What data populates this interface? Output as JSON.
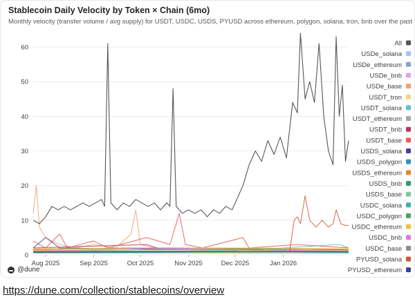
{
  "card": {
    "title": "Stablecoin Daily Velocity by Token × Chain (6mo)",
    "subtitle": "Monthly velocity (transfer volume / avg supply) for USDT, USDC, USDS, PYUSD across ethereum, polygon, solana, tron, bnb over the past year. Uses sta"
  },
  "footer": {
    "brand": "@dune"
  },
  "link": {
    "url": "https://dune.com/collection/stablecoins/overview"
  },
  "chart_data": {
    "type": "line",
    "x_start": "2025-07-24",
    "x_end": "2026-02-12",
    "x_ticks": [
      {
        "date": "2025-08-01",
        "label": "Aug 2025"
      },
      {
        "date": "2025-09-01",
        "label": "Sep 2025"
      },
      {
        "date": "2025-10-01",
        "label": "Oct 2025"
      },
      {
        "date": "2025-11-01",
        "label": "Nov 2025"
      },
      {
        "date": "2025-12-01",
        "label": "Dec 2025"
      },
      {
        "date": "2026-01-01",
        "label": "Jan 2026"
      }
    ],
    "ylim": [
      0,
      65
    ],
    "y_ticks": [
      0,
      10,
      20,
      30,
      40,
      50,
      60
    ],
    "grid": "horizontal",
    "legend_position": "right",
    "series": [
      {
        "name": "All",
        "color": "#555555",
        "values": [
          [
            "2025-07-24",
            10
          ],
          [
            "2025-07-28",
            9
          ],
          [
            "2025-08-01",
            11
          ],
          [
            "2025-08-05",
            14
          ],
          [
            "2025-08-09",
            13
          ],
          [
            "2025-08-13",
            14
          ],
          [
            "2025-08-17",
            13
          ],
          [
            "2025-08-21",
            14
          ],
          [
            "2025-08-25",
            15
          ],
          [
            "2025-08-29",
            14
          ],
          [
            "2025-09-02",
            15
          ],
          [
            "2025-09-06",
            16
          ],
          [
            "2025-09-08",
            14
          ],
          [
            "2025-09-10",
            61
          ],
          [
            "2025-09-12",
            15
          ],
          [
            "2025-09-16",
            13
          ],
          [
            "2025-09-20",
            15
          ],
          [
            "2025-09-24",
            14
          ],
          [
            "2025-09-28",
            16
          ],
          [
            "2025-10-02",
            15
          ],
          [
            "2025-10-06",
            14
          ],
          [
            "2025-10-10",
            15
          ],
          [
            "2025-10-14",
            13
          ],
          [
            "2025-10-18",
            15
          ],
          [
            "2025-10-20",
            14
          ],
          [
            "2025-10-22",
            48
          ],
          [
            "2025-10-24",
            14
          ],
          [
            "2025-10-28",
            12
          ],
          [
            "2025-11-01",
            13
          ],
          [
            "2025-11-05",
            12
          ],
          [
            "2025-11-09",
            13
          ],
          [
            "2025-11-13",
            11
          ],
          [
            "2025-11-17",
            13
          ],
          [
            "2025-11-21",
            12
          ],
          [
            "2025-11-25",
            14
          ],
          [
            "2025-11-29",
            13
          ],
          [
            "2025-12-02",
            16
          ],
          [
            "2025-12-06",
            20
          ],
          [
            "2025-12-10",
            26
          ],
          [
            "2025-12-14",
            30
          ],
          [
            "2025-12-18",
            27
          ],
          [
            "2025-12-22",
            33
          ],
          [
            "2025-12-26",
            29
          ],
          [
            "2025-12-30",
            34
          ],
          [
            "2026-01-03",
            28
          ],
          [
            "2026-01-07",
            44
          ],
          [
            "2026-01-10",
            41
          ],
          [
            "2026-01-12",
            64
          ],
          [
            "2026-01-15",
            45
          ],
          [
            "2026-01-18",
            50
          ],
          [
            "2026-01-21",
            44
          ],
          [
            "2026-01-24",
            61
          ],
          [
            "2026-01-27",
            40
          ],
          [
            "2026-01-30",
            30
          ],
          [
            "2026-02-02",
            26
          ],
          [
            "2026-02-04",
            63
          ],
          [
            "2026-02-06",
            40
          ],
          [
            "2026-02-08",
            49
          ],
          [
            "2026-02-10",
            27
          ],
          [
            "2026-02-12",
            33
          ]
        ]
      },
      {
        "name": "USDe_solana",
        "color": "#9ec5f8",
        "values": [
          [
            "2025-07-24",
            1
          ],
          [
            "2025-10-01",
            1
          ],
          [
            "2026-02-12",
            1
          ]
        ]
      },
      {
        "name": "USDe_ethereum",
        "color": "#8ea0c8",
        "values": [
          [
            "2025-07-24",
            1.5
          ],
          [
            "2025-10-01",
            2
          ],
          [
            "2026-02-12",
            1.5
          ]
        ]
      },
      {
        "name": "USDe_bnb",
        "color": "#e3a0ec",
        "values": [
          [
            "2025-07-24",
            0.8
          ],
          [
            "2025-11-01",
            1
          ],
          [
            "2026-02-12",
            0.8
          ]
        ]
      },
      {
        "name": "USDe_base",
        "color": "#f0a070",
        "values": [
          [
            "2025-07-24",
            12
          ],
          [
            "2025-07-26",
            20
          ],
          [
            "2025-07-28",
            8
          ],
          [
            "2025-08-01",
            5
          ],
          [
            "2025-08-05",
            4
          ],
          [
            "2025-08-10",
            3
          ],
          [
            "2025-08-20",
            2
          ],
          [
            "2025-09-01",
            3
          ],
          [
            "2025-09-15",
            2
          ],
          [
            "2025-09-25",
            6
          ],
          [
            "2025-09-28",
            13
          ],
          [
            "2025-10-01",
            3
          ],
          [
            "2025-10-10",
            2
          ],
          [
            "2025-11-01",
            2
          ],
          [
            "2025-12-01",
            2
          ],
          [
            "2026-01-01",
            1
          ],
          [
            "2026-02-12",
            1
          ]
        ]
      },
      {
        "name": "USDT_tron",
        "color": "#f5d77a",
        "values": [
          [
            "2025-07-24",
            0.5
          ],
          [
            "2025-12-01",
            0.7
          ],
          [
            "2026-02-12",
            0.5
          ]
        ]
      },
      {
        "name": "USDT_solana",
        "color": "#5dc2c8",
        "values": [
          [
            "2025-07-24",
            1
          ],
          [
            "2025-12-01",
            1.2
          ],
          [
            "2026-02-06",
            3
          ],
          [
            "2026-02-12",
            2
          ]
        ]
      },
      {
        "name": "USDT_ethereum",
        "color": "#a8a8a8",
        "values": [
          [
            "2025-07-24",
            1
          ],
          [
            "2025-12-01",
            1
          ],
          [
            "2026-02-12",
            1
          ]
        ]
      },
      {
        "name": "USDT_bnb",
        "color": "#b7375b",
        "values": [
          [
            "2025-07-24",
            2
          ],
          [
            "2025-10-05",
            3
          ],
          [
            "2025-10-12",
            2
          ],
          [
            "2026-02-12",
            1.5
          ]
        ]
      },
      {
        "name": "USDT_base",
        "color": "#e85a55",
        "values": [
          [
            "2025-07-24",
            4
          ],
          [
            "2025-08-01",
            2
          ],
          [
            "2025-08-10",
            6
          ],
          [
            "2025-08-15",
            2
          ],
          [
            "2025-09-01",
            4
          ],
          [
            "2025-09-10",
            2
          ],
          [
            "2025-10-05",
            5
          ],
          [
            "2025-10-20",
            3
          ],
          [
            "2025-10-26",
            12
          ],
          [
            "2025-10-30",
            3
          ],
          [
            "2025-11-10",
            2
          ],
          [
            "2025-12-06",
            5
          ],
          [
            "2025-12-10",
            2
          ],
          [
            "2026-01-10",
            3
          ],
          [
            "2026-02-12",
            2
          ]
        ]
      },
      {
        "name": "USDS_solana",
        "color": "#4a3d9e",
        "values": [
          [
            "2025-07-24",
            2
          ],
          [
            "2025-08-01",
            5
          ],
          [
            "2025-08-10",
            2
          ],
          [
            "2026-02-12",
            1
          ]
        ]
      },
      {
        "name": "USDS_polygon",
        "color": "#3590c5",
        "values": [
          [
            "2025-07-24",
            0.8
          ],
          [
            "2025-12-01",
            1
          ],
          [
            "2026-02-12",
            0.8
          ]
        ]
      },
      {
        "name": "USDS_ethereum",
        "color": "#e58a2e",
        "values": [
          [
            "2025-07-24",
            1.2
          ],
          [
            "2025-11-01",
            1.5
          ],
          [
            "2026-02-12",
            1.2
          ]
        ]
      },
      {
        "name": "USDS_bnb",
        "color": "#2f9c66",
        "values": [
          [
            "2025-07-24",
            0.6
          ],
          [
            "2026-02-12",
            0.6
          ]
        ]
      },
      {
        "name": "USDS_base",
        "color": "#7ac99a",
        "values": [
          [
            "2025-07-24",
            1
          ],
          [
            "2025-10-15",
            1.5
          ],
          [
            "2026-02-12",
            1
          ]
        ]
      },
      {
        "name": "USDC_solana",
        "color": "#3bb5a5",
        "values": [
          [
            "2025-07-24",
            0.7
          ],
          [
            "2026-01-20",
            1
          ],
          [
            "2026-02-12",
            0.7
          ]
        ]
      },
      {
        "name": "USDC_polygon",
        "color": "#4aa55a",
        "values": [
          [
            "2025-07-24",
            1.5
          ],
          [
            "2025-09-20",
            2
          ],
          [
            "2026-02-12",
            1.5
          ]
        ]
      },
      {
        "name": "USDC_ethereum",
        "color": "#f2c03a",
        "values": [
          [
            "2025-07-24",
            1.8
          ],
          [
            "2025-12-15",
            2
          ],
          [
            "2026-02-12",
            1.8
          ]
        ]
      },
      {
        "name": "USDC_bnb",
        "color": "#e07ad6",
        "values": [
          [
            "2025-07-24",
            1
          ],
          [
            "2025-10-10",
            2
          ],
          [
            "2026-02-12",
            1
          ]
        ]
      },
      {
        "name": "USDC_base",
        "color": "#8c8c8c",
        "values": [
          [
            "2025-07-24",
            0.9
          ],
          [
            "2026-02-12",
            0.9
          ]
        ]
      },
      {
        "name": "PYUSD_solana",
        "color": "#d2533a",
        "values": [
          [
            "2025-07-24",
            1
          ],
          [
            "2025-12-01",
            1
          ],
          [
            "2026-01-05",
            1
          ],
          [
            "2026-01-08",
            10
          ],
          [
            "2026-01-10",
            11
          ],
          [
            "2026-01-12",
            9
          ],
          [
            "2026-01-15",
            17
          ],
          [
            "2026-01-18",
            10
          ],
          [
            "2026-01-20",
            9
          ],
          [
            "2026-01-22",
            8
          ],
          [
            "2026-01-26",
            10
          ],
          [
            "2026-01-30",
            8
          ],
          [
            "2026-02-02",
            9
          ],
          [
            "2026-02-04",
            13
          ],
          [
            "2026-02-07",
            9
          ],
          [
            "2026-02-10",
            8.5
          ],
          [
            "2026-02-12",
            8.5
          ]
        ]
      },
      {
        "name": "PYUSD_ethereum",
        "color": "#3f3d9e",
        "values": [
          [
            "2025-07-24",
            0.8
          ],
          [
            "2026-02-12",
            1
          ]
        ]
      }
    ]
  }
}
